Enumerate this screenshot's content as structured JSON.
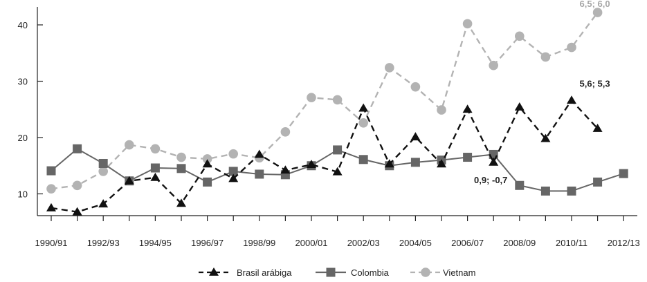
{
  "chart_data": {
    "type": "line",
    "title": "",
    "xlabel": "",
    "ylabel": "",
    "ylim": [
      5,
      45
    ],
    "yticks": [
      10,
      20,
      30,
      40
    ],
    "grid": false,
    "legend_position": "bottom",
    "x": [
      "1990/91",
      "1991/92",
      "1992/93",
      "1993/94",
      "1994/95",
      "1995/96",
      "1996/97",
      "1997/98",
      "1998/99",
      "1999/00",
      "2000/01",
      "2001/02",
      "2002/03",
      "2003/04",
      "2004/05",
      "2005/06",
      "2006/07",
      "2007/08",
      "2008/09",
      "2009/10",
      "2010/11",
      "2011/12",
      "2012/13",
      "2013/14"
    ],
    "xtick_labels": [
      "1990/91",
      "1992/93",
      "1994/95",
      "1996/97",
      "1998/99",
      "2000/01",
      "2002/03",
      "2004/05",
      "2006/07",
      "2008/09",
      "2010/11",
      "2012/13"
    ],
    "series": [
      {
        "name": "Brasil arábiga",
        "color": "#111111",
        "dash": "dashed",
        "marker": "triangle",
        "values": [
          7.5,
          6.8,
          8.2,
          12.3,
          12.9,
          8.3,
          15.3,
          12.7,
          17.0,
          14.2,
          15.2,
          13.9,
          25.2,
          15.3,
          20.1,
          15.3,
          25.0,
          15.6,
          25.4,
          19.8,
          26.6,
          21.6,
          null,
          null
        ]
      },
      {
        "name": "Colombia",
        "color": "#666666",
        "dash": "solid",
        "marker": "square",
        "values": [
          14.1,
          18.0,
          15.4,
          12.3,
          14.6,
          14.5,
          12.1,
          14.0,
          13.5,
          13.4,
          15.0,
          17.8,
          16.1,
          15.0,
          15.6,
          16.0,
          16.5,
          17.0,
          11.5,
          10.5,
          10.5,
          12.1,
          13.6,
          null
        ]
      },
      {
        "name": "Vietnam",
        "color": "#b3b3b3",
        "dash": "dashed",
        "marker": "circle",
        "values": [
          10.9,
          11.5,
          14.0,
          18.7,
          18.0,
          16.5,
          16.2,
          17.1,
          16.4,
          21.0,
          27.1,
          26.7,
          22.6,
          32.4,
          29.0,
          24.9,
          40.2,
          32.8,
          38.0,
          34.3,
          36.0,
          42.2,
          null,
          null
        ]
      }
    ],
    "annotations": [
      {
        "text": "6,5; 6,0",
        "series": "Vietnam",
        "x": "2011/12",
        "y": 43.2
      },
      {
        "text": "5,6; 5,3",
        "series": "Brasil arábiga",
        "x": "2011/12",
        "y": 29.0
      },
      {
        "text": "0,9; -0,7",
        "series": "Colombia",
        "x": "2007/08",
        "y": 11.9
      }
    ]
  }
}
